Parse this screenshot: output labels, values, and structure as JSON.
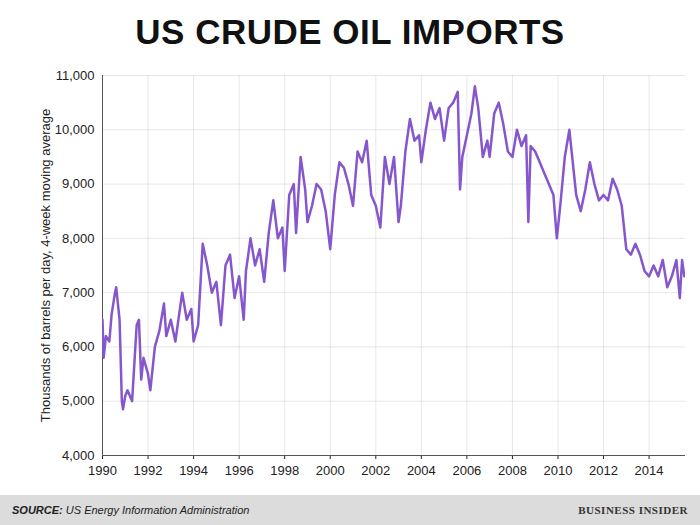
{
  "chart_data": {
    "type": "line",
    "title": "US CRUDE OIL IMPORTS",
    "y_label": "Thousands of barrels per day, 4-week moving average",
    "source": "SOURCE: US Energy Information Administration",
    "logo": "BUSINESS INSIDER",
    "color": "#8656cc",
    "grid": true,
    "xlim": [
      1990,
      2015.6
    ],
    "xticks": [
      1990,
      1992,
      1994,
      1996,
      1998,
      2000,
      2002,
      2004,
      2006,
      2008,
      2010,
      2012,
      2014
    ],
    "ylim": [
      4000,
      11000
    ],
    "yticks": [
      {
        "value": 4000,
        "label": "4,000"
      },
      {
        "value": 5000,
        "label": "5,000"
      },
      {
        "value": 6000,
        "label": "6,000"
      },
      {
        "value": 7000,
        "label": "7,000"
      },
      {
        "value": 8000,
        "label": "8,000"
      },
      {
        "value": 9000,
        "label": "9,000"
      },
      {
        "value": 10000,
        "label": "10,000"
      },
      {
        "value": 11000,
        "label": "11,000"
      }
    ],
    "x": [
      1990.0,
      1990.05,
      1990.15,
      1990.3,
      1990.4,
      1990.55,
      1990.6,
      1990.7,
      1990.75,
      1990.85,
      1990.9,
      1991.0,
      1991.1,
      1991.2,
      1991.3,
      1991.5,
      1991.6,
      1991.7,
      1991.8,
      1992.0,
      1992.1,
      1992.3,
      1992.5,
      1992.7,
      1992.8,
      1993.0,
      1993.2,
      1993.5,
      1993.7,
      1993.9,
      1994.0,
      1994.2,
      1994.4,
      1994.6,
      1994.8,
      1995.0,
      1995.2,
      1995.4,
      1995.6,
      1995.8,
      1996.0,
      1996.2,
      1996.3,
      1996.5,
      1996.7,
      1996.9,
      1997.1,
      1997.3,
      1997.5,
      1997.7,
      1997.9,
      1998.0,
      1998.2,
      1998.4,
      1998.5,
      1998.7,
      1998.9,
      1999.0,
      1999.2,
      1999.4,
      1999.6,
      1999.8,
      2000.0,
      2000.2,
      2000.4,
      2000.6,
      2000.8,
      2001.0,
      2001.2,
      2001.4,
      2001.6,
      2001.8,
      2002.0,
      2002.2,
      2002.4,
      2002.6,
      2002.8,
      2003.0,
      2003.1,
      2003.3,
      2003.5,
      2003.7,
      2003.9,
      2004.0,
      2004.2,
      2004.4,
      2004.6,
      2004.8,
      2005.0,
      2005.2,
      2005.4,
      2005.6,
      2005.7,
      2005.8,
      2006.0,
      2006.2,
      2006.35,
      2006.5,
      2006.7,
      2006.9,
      2007.0,
      2007.2,
      2007.4,
      2007.6,
      2007.8,
      2008.0,
      2008.2,
      2008.4,
      2008.6,
      2008.7,
      2008.8,
      2009.0,
      2009.2,
      2009.4,
      2009.6,
      2009.8,
      2009.95,
      2010.1,
      2010.3,
      2010.5,
      2010.6,
      2010.8,
      2011.0,
      2011.2,
      2011.4,
      2011.6,
      2011.8,
      2012.0,
      2012.2,
      2012.4,
      2012.6,
      2012.8,
      2013.0,
      2013.2,
      2013.4,
      2013.6,
      2013.8,
      2014.0,
      2014.2,
      2014.4,
      2014.6,
      2014.8,
      2015.0,
      2015.2,
      2015.35,
      2015.45,
      2015.55
    ],
    "values": [
      6500,
      5800,
      6200,
      6100,
      6600,
      7000,
      7100,
      6700,
      6500,
      5000,
      4850,
      5100,
      5200,
      5100,
      5000,
      6400,
      6500,
      5400,
      5800,
      5500,
      5200,
      6000,
      6300,
      6800,
      6200,
      6500,
      6100,
      7000,
      6500,
      6700,
      6100,
      6400,
      7900,
      7500,
      7000,
      7200,
      6400,
      7500,
      7700,
      6900,
      7300,
      6500,
      7400,
      8000,
      7500,
      7800,
      7200,
      8100,
      8700,
      8000,
      8200,
      7400,
      8800,
      9000,
      8100,
      9500,
      8900,
      8300,
      8600,
      9000,
      8900,
      8500,
      7800,
      8800,
      9400,
      9300,
      9000,
      8600,
      9600,
      9400,
      9800,
      8800,
      8600,
      8200,
      9500,
      9000,
      9500,
      8300,
      8600,
      9600,
      10200,
      9800,
      9900,
      9400,
      10000,
      10500,
      10200,
      10400,
      9800,
      10400,
      10500,
      10700,
      8900,
      9500,
      9900,
      10300,
      10800,
      10400,
      9500,
      9800,
      9500,
      10300,
      10500,
      10100,
      9600,
      9500,
      10000,
      9700,
      9900,
      8300,
      9700,
      9600,
      9400,
      9200,
      9000,
      8800,
      8000,
      8600,
      9500,
      10000,
      9600,
      8800,
      8500,
      8900,
      9400,
      9000,
      8700,
      8800,
      8700,
      9100,
      8900,
      8600,
      7800,
      7700,
      7900,
      7700,
      7400,
      7300,
      7500,
      7300,
      7600,
      7100,
      7300,
      7600,
      6900,
      7600,
      7300
    ]
  }
}
